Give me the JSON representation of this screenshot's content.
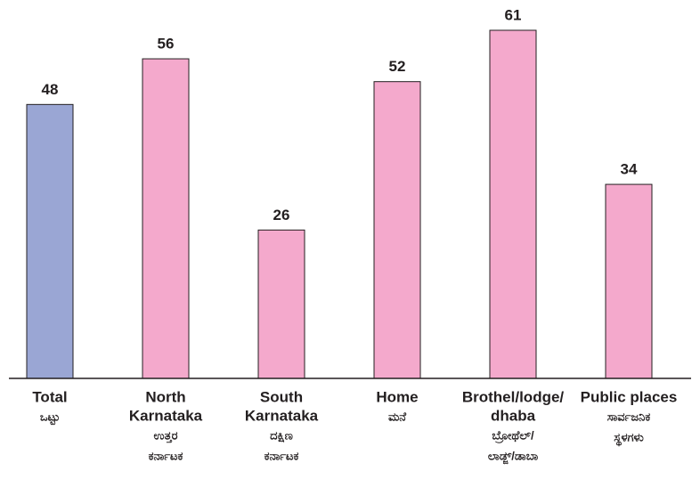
{
  "chart_data": {
    "type": "bar",
    "categories": [
      [
        "Total"
      ],
      [
        "North",
        "Karnataka"
      ],
      [
        "South",
        "Karnataka"
      ],
      [
        "Home"
      ],
      [
        "Brothel/lodge/",
        "dhaba"
      ],
      [
        "Public places"
      ]
    ],
    "categories_kannada": [
      [
        "ಒಟ್ಟು"
      ],
      [
        "ಉತ್ತರ",
        "ಕರ್ನಾಟಕ"
      ],
      [
        "ದಕ್ಷಿಣ",
        "ಕರ್ನಾಟಕ"
      ],
      [
        "ಮನೆ"
      ],
      [
        "ಬ್ರೋಥೆಲ್/",
        "ಲಾಡ್ಜ್/ಡಾಬಾ"
      ],
      [
        "ಸಾರ್ವಜನಿಕ",
        "ಸ್ಥಳಗಳು"
      ]
    ],
    "values": [
      48,
      56,
      26,
      52,
      61,
      34
    ],
    "colors": [
      "#9aa6d4",
      "#f4a9cc",
      "#f4a9cc",
      "#f4a9cc",
      "#f4a9cc",
      "#f4a9cc"
    ]
  }
}
